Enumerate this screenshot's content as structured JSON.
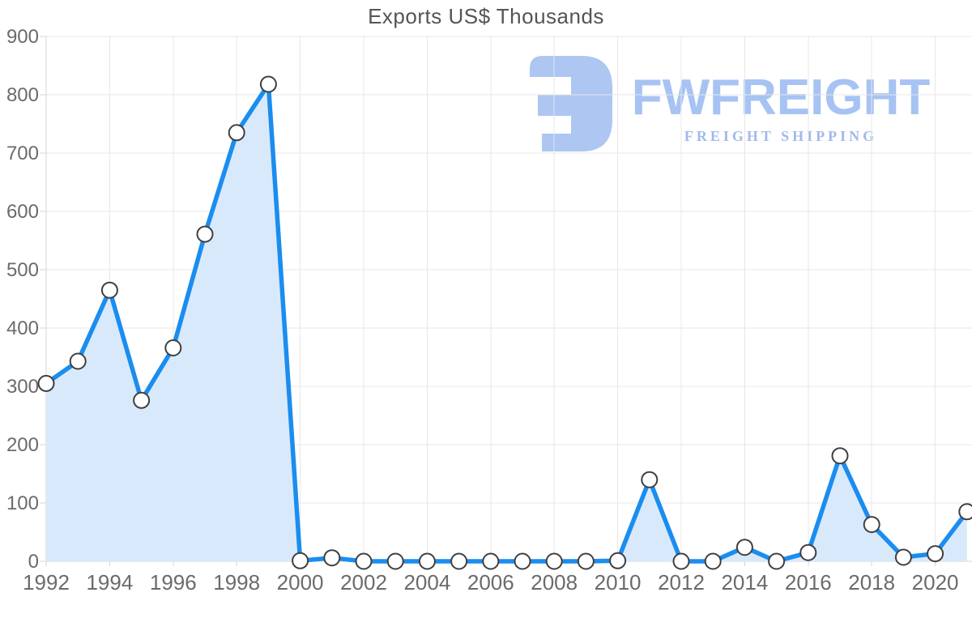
{
  "title": "Exports US$ Thousands",
  "watermark": {
    "brand": "FWFREIGHT",
    "tagline": "FREIGHT SHIPPING"
  },
  "chart_data": {
    "type": "area",
    "title": "Exports US$ Thousands",
    "series_name": "Exports US$ Thousands",
    "x": [
      1992,
      1993,
      1994,
      1995,
      1996,
      1997,
      1998,
      1999,
      2000,
      2001,
      2002,
      2003,
      2004,
      2005,
      2006,
      2007,
      2008,
      2009,
      2010,
      2011,
      2012,
      2013,
      2014,
      2015,
      2016,
      2017,
      2018,
      2019,
      2020,
      2021
    ],
    "values": [
      305,
      343,
      465,
      276,
      366,
      561,
      735,
      818,
      1,
      6,
      0,
      0,
      0,
      0,
      0,
      0,
      0,
      0,
      1,
      140,
      0,
      0,
      24,
      0,
      15,
      181,
      63,
      7,
      13,
      85
    ],
    "xlabel": "",
    "ylabel": "",
    "ylim": [
      0,
      900
    ],
    "y_ticks": [
      0,
      100,
      200,
      300,
      400,
      500,
      600,
      700,
      800,
      900
    ],
    "x_tick_years": [
      1992,
      1994,
      1996,
      1998,
      2000,
      2002,
      2004,
      2006,
      2008,
      2010,
      2012,
      2014,
      2016,
      2018,
      2020
    ],
    "grid": true,
    "legend_position": "none",
    "marker": "circle-white",
    "colors": {
      "line": "#1b8def",
      "area_fill": "#d9e9fc",
      "marker_fill": "#ffffff",
      "marker_stroke": "#3f3f3f",
      "grid": "#e7e7e7",
      "axis": "#d5d5d5",
      "tick_label": "#6b6b6b",
      "title": "#555555",
      "logo_blue": "#adc6f2",
      "logo_text": "#a6c3f3",
      "logo_tagline": "#a2b9ec"
    }
  }
}
